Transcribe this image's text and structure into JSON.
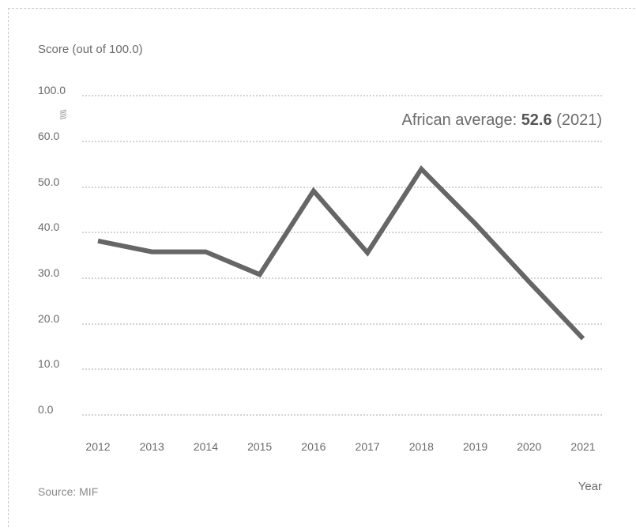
{
  "chart_data": {
    "type": "line",
    "ylabel": "Score (out of 100.0)",
    "xlabel": "Year",
    "source": "Source: MIF",
    "y_ticks": [
      "100.0",
      "60.0",
      "50.0",
      "40.0",
      "30.0",
      "20.0",
      "10.0",
      "0.0"
    ],
    "y_axis_break": true,
    "ylim": [
      0,
      100
    ],
    "categories": [
      "2012",
      "2013",
      "2014",
      "2015",
      "2016",
      "2017",
      "2018",
      "2019",
      "2020",
      "2021"
    ],
    "series": [
      {
        "values": [
          38.3,
          35.9,
          35.9,
          30.9,
          49.3,
          35.7,
          54.1,
          42.1,
          29.3,
          16.8
        ]
      }
    ],
    "annotation": {
      "prefix": "African average: ",
      "value": "52.6",
      "suffix": " (2021)"
    },
    "colors": {
      "line": "#666666",
      "grid": "#aaaaaa",
      "text": "#6b6b6b"
    },
    "grid": true
  }
}
